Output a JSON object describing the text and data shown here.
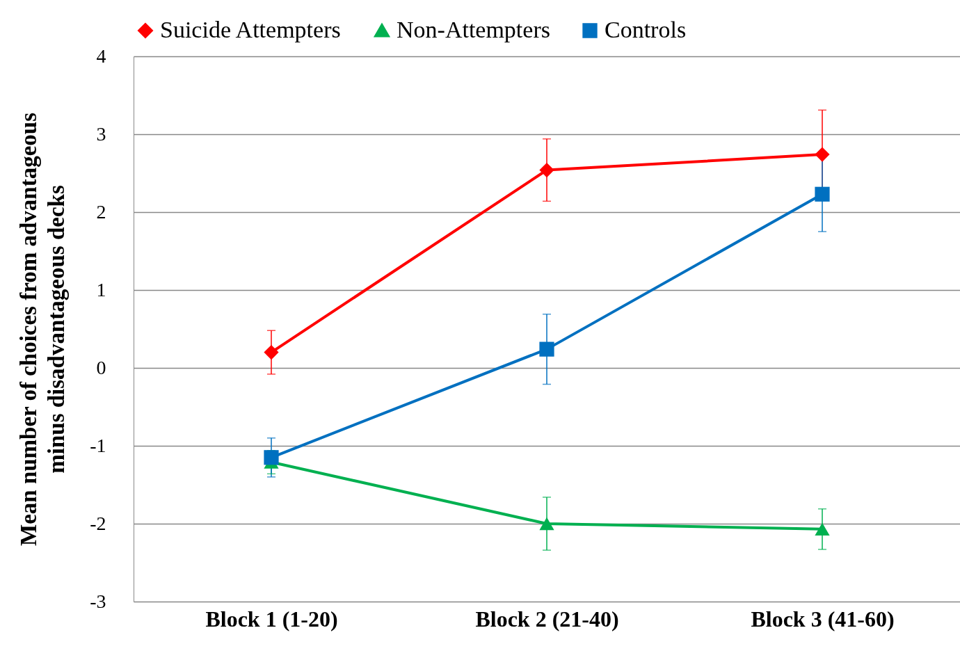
{
  "chart_data": {
    "type": "line",
    "ylabel": "Mean number of choices from advantageous\nminus disadvantageous decks",
    "categories": [
      "Block 1 (1-20)",
      "Block 2 (21-40)",
      "Block 3 (41-60)"
    ],
    "series": [
      {
        "name": "Suicide Attempters",
        "color": "#ff0000",
        "marker": "diamond",
        "values": [
          0.2,
          2.54,
          2.74
        ],
        "errors": [
          0.28,
          0.4,
          0.57
        ]
      },
      {
        "name": "Non-Attempters",
        "color": "#00b050",
        "marker": "triangle",
        "values": [
          -1.21,
          -2.0,
          -2.07
        ],
        "errors": [
          0.15,
          0.34,
          0.26
        ]
      },
      {
        "name": "Controls",
        "color": "#0070c0",
        "marker": "square",
        "values": [
          -1.15,
          0.24,
          2.23
        ],
        "errors": [
          0.25,
          0.45,
          0.48
        ]
      }
    ],
    "ylim": [
      -3,
      4
    ],
    "yticks": [
      -3,
      -2,
      -1,
      0,
      1,
      2,
      3,
      4
    ],
    "grid": "y",
    "legend": "top",
    "line_style": "solid"
  }
}
